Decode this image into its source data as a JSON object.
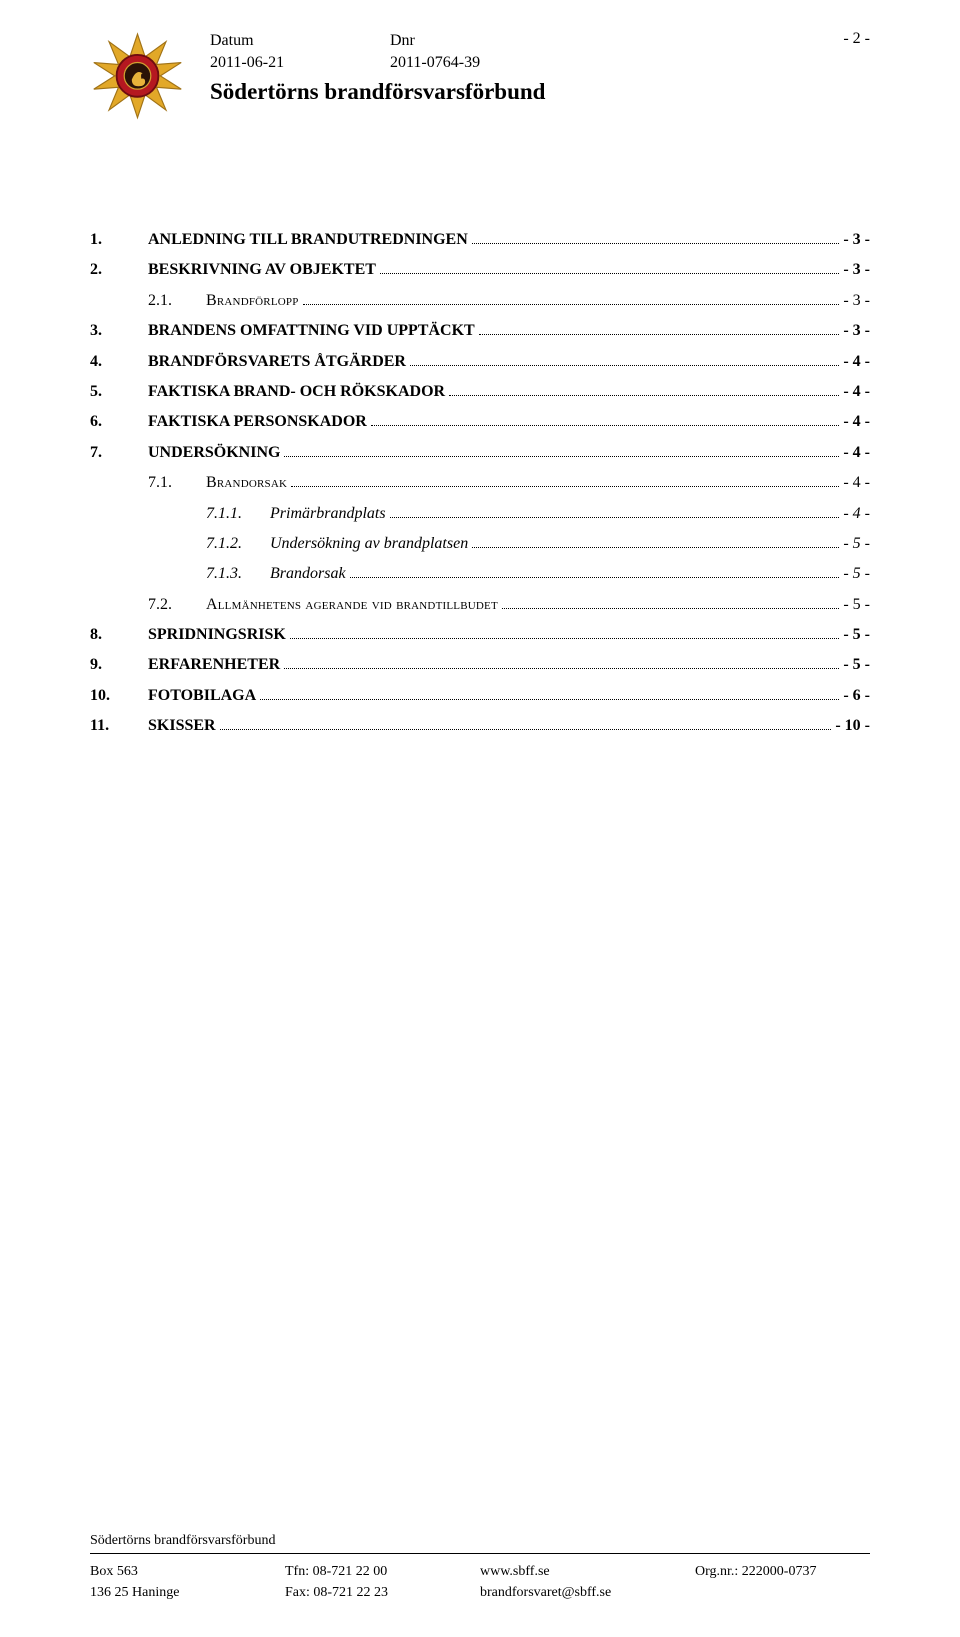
{
  "header": {
    "datum_label": "Datum",
    "datum_value": "2011-06-21",
    "dnr_label": "Dnr",
    "dnr_value": "2011-0764-39",
    "org_title": "Södertörns brandförsvarsförbund",
    "page_num": "- 2 -"
  },
  "logo": {
    "gold": "#e2a828",
    "red": "#b51820",
    "dark": "#2a1206",
    "black": "#000000"
  },
  "toc": [
    {
      "level": 1,
      "num": "1.",
      "label": "ANLEDNING TILL BRANDUTREDNINGEN",
      "page": "- 3 -"
    },
    {
      "level": 1,
      "num": "2.",
      "label": "BESKRIVNING AV OBJEKTET",
      "page": "- 3 -"
    },
    {
      "level": 2,
      "num": "2.1.",
      "label": "Brandförlopp",
      "page": "- 3 -"
    },
    {
      "level": 1,
      "num": "3.",
      "label": "BRANDENS OMFATTNING VID UPPTÄCKT",
      "page": "- 3 -"
    },
    {
      "level": 1,
      "num": "4.",
      "label": "BRANDFÖRSVARETS ÅTGÄRDER",
      "page": "- 4 -"
    },
    {
      "level": 1,
      "num": "5.",
      "label": "FAKTISKA BRAND- OCH RÖKSKADOR",
      "page": "- 4 -"
    },
    {
      "level": 1,
      "num": "6.",
      "label": "FAKTISKA PERSONSKADOR",
      "page": "- 4 -"
    },
    {
      "level": 1,
      "num": "7.",
      "label": "UNDERSÖKNING",
      "page": "- 4 -"
    },
    {
      "level": 2,
      "num": "7.1.",
      "label": "Brandorsak",
      "page": "- 4 -"
    },
    {
      "level": 3,
      "num": "7.1.1.",
      "label": "Primärbrandplats",
      "page": "- 4 -"
    },
    {
      "level": 3,
      "num": "7.1.2.",
      "label": "Undersökning av brandplatsen",
      "page": "- 5 -"
    },
    {
      "level": 3,
      "num": "7.1.3.",
      "label": "Brandorsak",
      "page": "- 5 -"
    },
    {
      "level": 2,
      "num": "7.2.",
      "label": "Allmänhetens agerande vid brandtillbudet",
      "page": "- 5 -"
    },
    {
      "level": 1,
      "num": "8.",
      "label": "SPRIDNINGSRISK",
      "page": "- 5 -"
    },
    {
      "level": 1,
      "num": "9.",
      "label": "ERFARENHETER",
      "page": "- 5 -"
    },
    {
      "level": 1,
      "num": "10.",
      "label": "FOTOBILAGA",
      "page": "- 6 -"
    },
    {
      "level": 1,
      "num": "11.",
      "label": "SKISSER",
      "page": "- 10 -"
    }
  ],
  "footer": {
    "org": "Södertörns brandförsvarsförbund",
    "col1_l1": "Box 563",
    "col1_l2": "136 25  Haninge",
    "col2_l1": "Tfn: 08-721 22 00",
    "col2_l2": "Fax: 08-721 22 23",
    "col3_l1": "www.sbff.se",
    "col3_l2": "brandforsvaret@sbff.se",
    "col4_l1": "Org.nr.: 222000-0737"
  }
}
